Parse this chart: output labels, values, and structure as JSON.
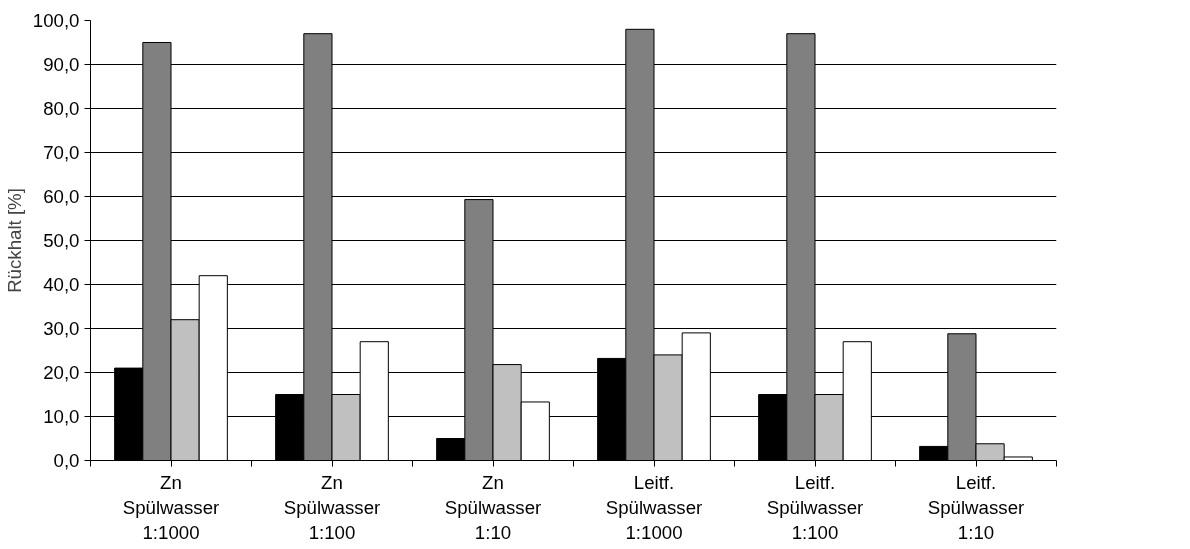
{
  "chart_data": {
    "type": "bar",
    "ylabel": "Rückhalt [%]",
    "categories": [
      "Zn\nSpülwasser\n1:1000",
      "Zn\nSpülwasser\n1:100",
      "Zn\nSpülwasser\n1:10",
      "Leitf.\nSpülwasser\n1:1000",
      "Leitf.\nSpülwasser\n1:100",
      "Leitf.\nSpülwasser\n1:10"
    ],
    "series": [
      {
        "color": "#000000",
        "values": [
          21,
          15,
          5,
          23.2,
          15,
          3.2
        ]
      },
      {
        "color": "#808080",
        "values": [
          95,
          97,
          59.3,
          98,
          97,
          28.8
        ]
      },
      {
        "color": "#c0c0c0",
        "values": [
          32,
          15,
          21.8,
          24,
          15,
          3.8
        ]
      },
      {
        "color": "#ffffff",
        "values": [
          42,
          27,
          13.3,
          29,
          27,
          0.8
        ]
      }
    ],
    "ylim": [
      0,
      100
    ],
    "yticks": [
      {
        "value": 0,
        "label": "0,0"
      },
      {
        "value": 10,
        "label": "10,0"
      },
      {
        "value": 20,
        "label": "20,0"
      },
      {
        "value": 30,
        "label": "30,0"
      },
      {
        "value": 40,
        "label": "40,0"
      },
      {
        "value": 50,
        "label": "50,0"
      },
      {
        "value": 60,
        "label": "60,0"
      },
      {
        "value": 70,
        "label": "70,0"
      },
      {
        "value": 80,
        "label": "80,0"
      },
      {
        "value": 90,
        "label": "90,0"
      },
      {
        "value": 100,
        "label": "100,0"
      }
    ],
    "grid": "y"
  }
}
